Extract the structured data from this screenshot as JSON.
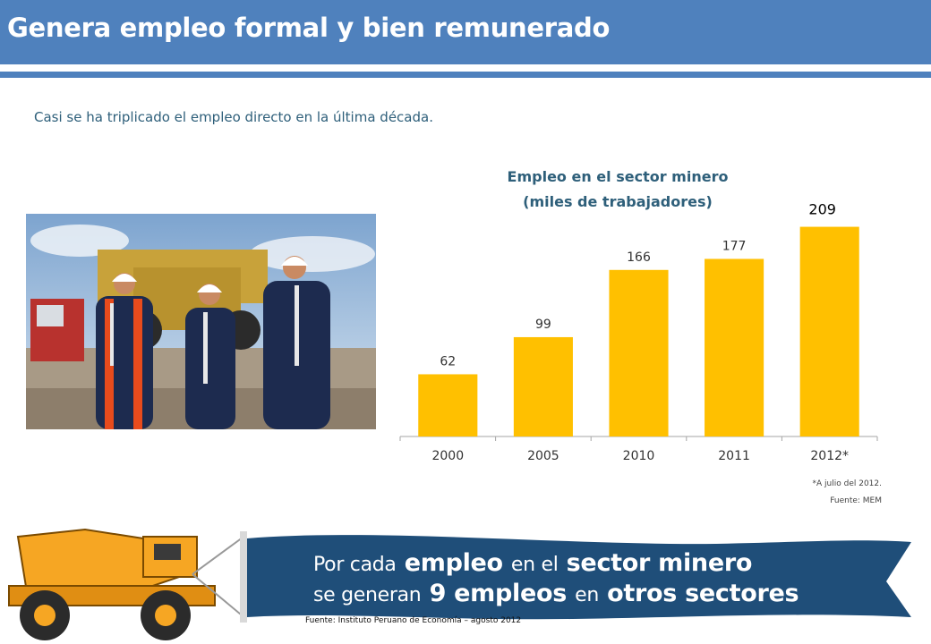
{
  "header": {
    "title": "Genera empleo formal y bien remunerado"
  },
  "intro": "Casi se ha triplicado el empleo directo en la última década.",
  "photo": {
    "icon": "mining-workers-photo"
  },
  "chart_title": {
    "line1": "Empleo en el sector minero",
    "line2": "(miles de trabajadores)"
  },
  "chart_data": {
    "type": "bar",
    "title": "Empleo en el sector minero (miles de trabajadores)",
    "categories": [
      "2000",
      "2005",
      "2010",
      "2011",
      "2012*"
    ],
    "values": [
      62,
      99,
      166,
      177,
      209
    ],
    "value_labels": [
      "62",
      "99",
      "166",
      "177",
      "209"
    ],
    "ylim": [
      0,
      230
    ],
    "grid": false,
    "bar_color": "#ffc000"
  },
  "notes": {
    "footnote": "*A julio del 2012.",
    "source": "Fuente: MEM"
  },
  "banner": {
    "line1_a": "Por cada",
    "line1_b": "empleo",
    "line1_c": "en el",
    "line1_d": "sector minero",
    "line2_a": "se generan",
    "line2_b": "9 empleos",
    "line2_c": "en",
    "line2_d": "otros sectores",
    "source": "Fuente: Instituto Peruano de Economía – agosto 2012",
    "ribbon_color": "#1f4e79",
    "truck_color": "#f6a623"
  }
}
